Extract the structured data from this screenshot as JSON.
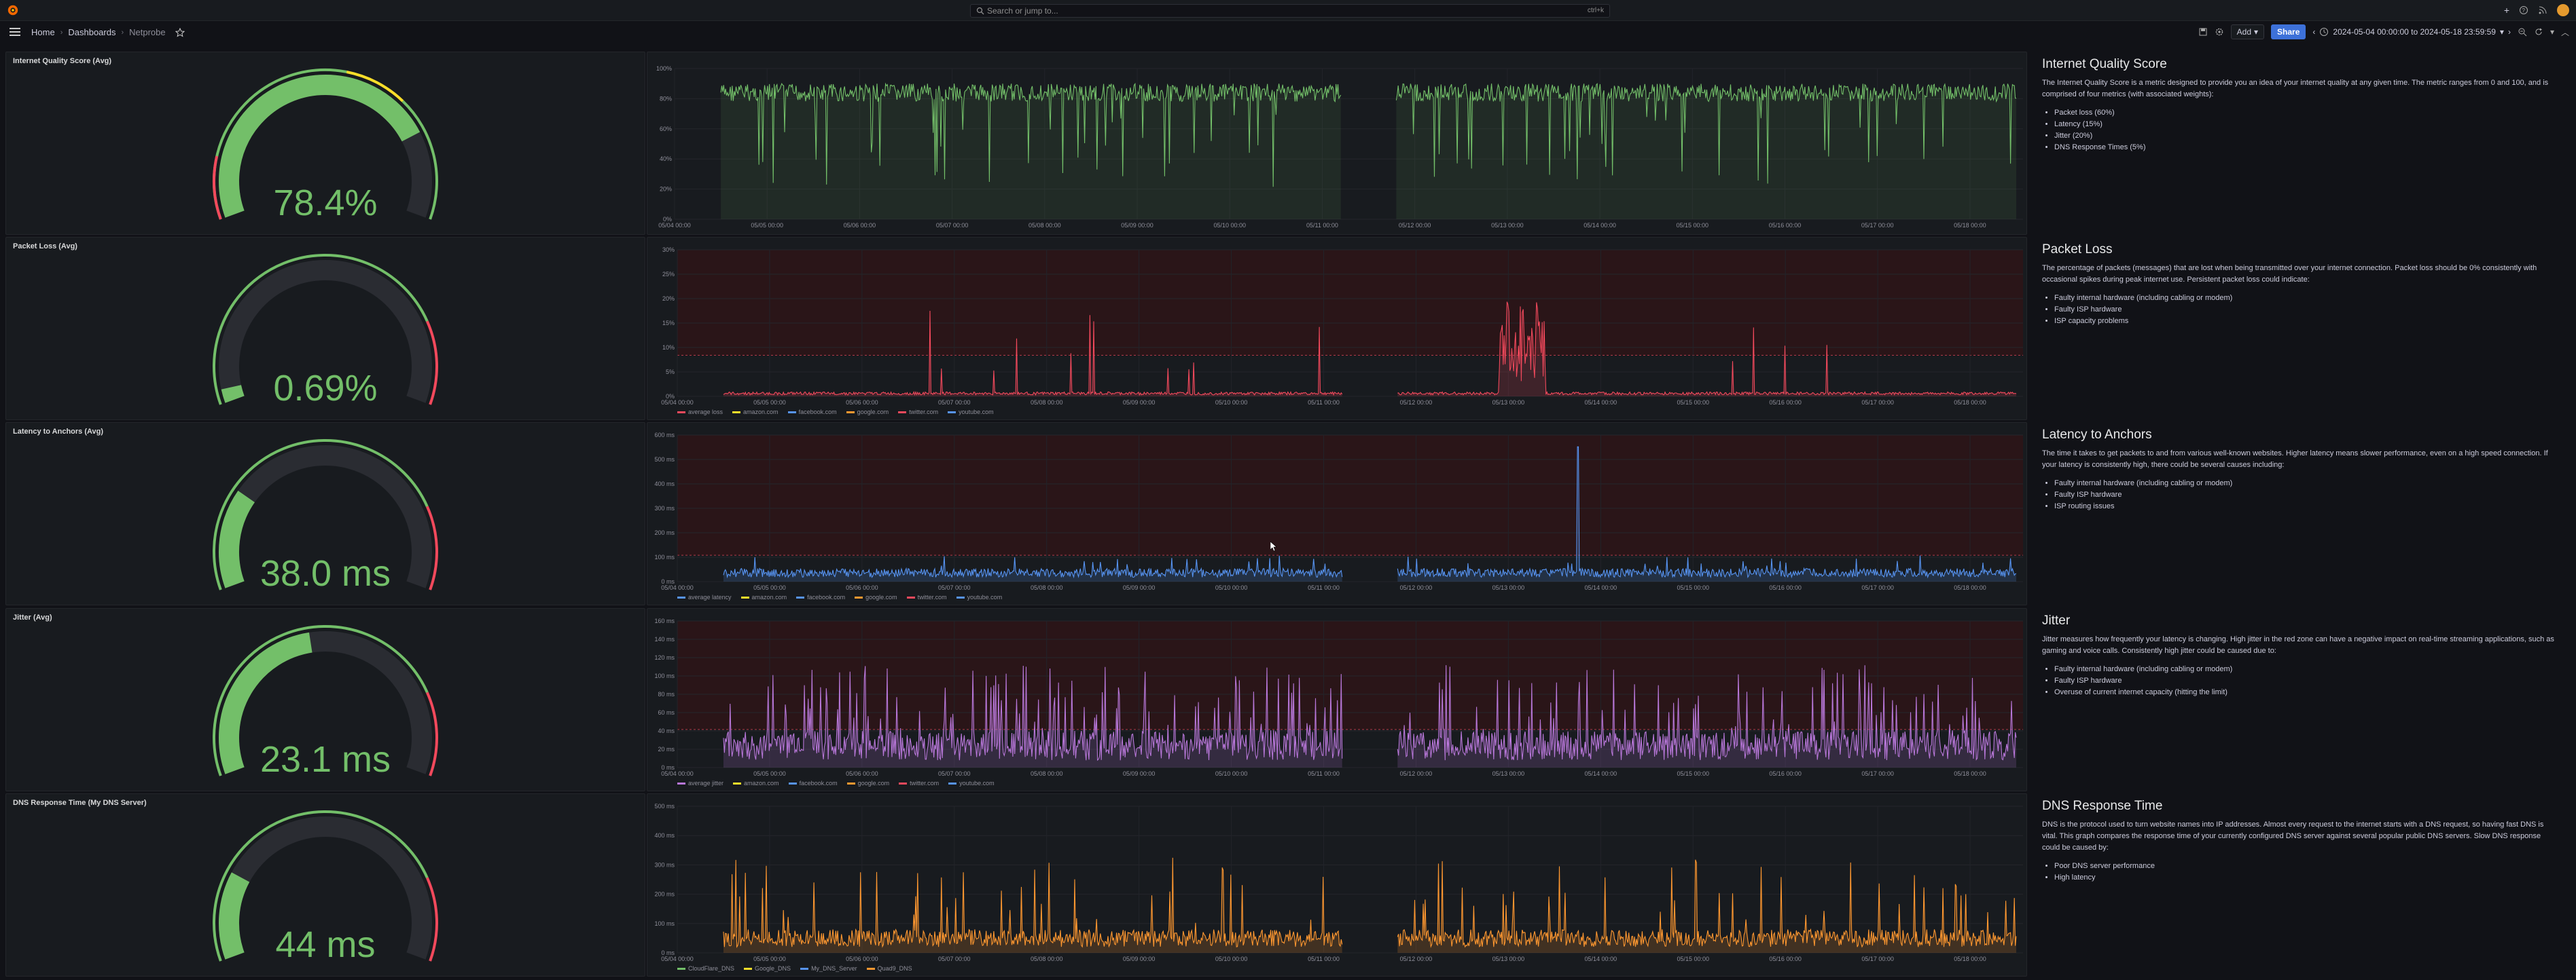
{
  "topbar": {
    "search_placeholder": "Search or jump to...",
    "search_shortcut": "ctrl+k",
    "plus_label": "+"
  },
  "breadcrumb": [
    "Home",
    "Dashboards",
    "Netprobe"
  ],
  "toolbar": {
    "add_label": "Add",
    "share_label": "Share",
    "time_range": "2024-05-04 00:00:00 to 2024-05-18 23:59:59"
  },
  "colors": {
    "green": "#73bf69",
    "red": "#f2495c",
    "blue": "#5794f2",
    "purple": "#b877d9",
    "orange": "#ff9830",
    "yellow": "#fade2a",
    "darkred": "#3b1c20"
  },
  "x_ticks": [
    "05/04 00:00",
    "05/05 00:00",
    "05/06 00:00",
    "05/07 00:00",
    "05/08 00:00",
    "05/09 00:00",
    "05/10 00:00",
    "05/11 00:00",
    "05/12 00:00",
    "05/13 00:00",
    "05/14 00:00",
    "05/15 00:00",
    "05/16 00:00",
    "05/17 00:00",
    "05/18 00:00"
  ],
  "rows": [
    {
      "gauge_title": "Internet Quality Score (Avg)",
      "gauge_value": "78.4%",
      "gauge_fraction": 0.784,
      "gauge_color": "#73bf69",
      "y_ticks": [
        "0%",
        "20%",
        "40%",
        "60%",
        "80%",
        "100%"
      ],
      "series_color": "#73bf69",
      "legend": [],
      "info_title": "Internet Quality Score",
      "info_text": "The Internet Quality Score is a metric designed to provide you an idea of your internet quality at any given time. The metric ranges from 0 and 100, and is comprised of four metrics (with associated weights):",
      "info_items": [
        "Packet loss (60%)",
        "Latency (15%)",
        "Jitter (20%)",
        "DNS Response Times (5%)"
      ]
    },
    {
      "gauge_title": "Packet Loss (Avg)",
      "gauge_value": "0.69%",
      "gauge_fraction": 0.0345,
      "gauge_color": "#73bf69",
      "y_ticks": [
        "0%",
        "5%",
        "10%",
        "15%",
        "20%",
        "25%",
        "30%"
      ],
      "series_color": "#f2495c",
      "legend": [
        {
          "name": "average loss",
          "color": "#f2495c"
        },
        {
          "name": "amazon.com",
          "color": "#fade2a"
        },
        {
          "name": "facebook.com",
          "color": "#5794f2"
        },
        {
          "name": "google.com",
          "color": "#ff9830"
        },
        {
          "name": "twitter.com",
          "color": "#f2495c"
        },
        {
          "name": "youtube.com",
          "color": "#5794f2"
        }
      ],
      "info_title": "Packet Loss",
      "info_text": "The percentage of packets (messages) that are lost when being transmitted over your internet connection. Packet loss should be 0% consistently with occasional spikes during peak internet use. Persistent packet loss could indicate:",
      "info_items": [
        "Faulty internal hardware (including cabling or modem)",
        "Faulty ISP hardware",
        "ISP capacity problems"
      ]
    },
    {
      "gauge_title": "Latency to Anchors (Avg)",
      "gauge_value": "38.0 ms",
      "gauge_fraction": 0.25,
      "gauge_color": "#73bf69",
      "y_ticks": [
        "0 ms",
        "100 ms",
        "200 ms",
        "300 ms",
        "400 ms",
        "500 ms",
        "600 ms"
      ],
      "series_color": "#5794f2",
      "legend": [
        {
          "name": "average latency",
          "color": "#5794f2"
        },
        {
          "name": "amazon.com",
          "color": "#fade2a"
        },
        {
          "name": "facebook.com",
          "color": "#5794f2"
        },
        {
          "name": "google.com",
          "color": "#ff9830"
        },
        {
          "name": "twitter.com",
          "color": "#f2495c"
        },
        {
          "name": "youtube.com",
          "color": "#5794f2"
        }
      ],
      "info_title": "Latency to Anchors",
      "info_text": "The time it takes to get packets to and from various well-known websites. Higher latency means slower performance, even on a high speed connection. If your latency is consistently high, there could be several causes including:",
      "info_items": [
        "Faulty internal hardware (including cabling or modem)",
        "Faulty ISP hardware",
        "ISP routing issues"
      ]
    },
    {
      "gauge_title": "Jitter (Avg)",
      "gauge_value": "23.1 ms",
      "gauge_fraction": 0.46,
      "gauge_color": "#73bf69",
      "y_ticks": [
        "0 ms",
        "20 ms",
        "40 ms",
        "60 ms",
        "80 ms",
        "100 ms",
        "120 ms",
        "140 ms",
        "160 ms"
      ],
      "series_color": "#b877d9",
      "legend": [
        {
          "name": "average jitter",
          "color": "#b877d9"
        },
        {
          "name": "amazon.com",
          "color": "#fade2a"
        },
        {
          "name": "facebook.com",
          "color": "#5794f2"
        },
        {
          "name": "google.com",
          "color": "#ff9830"
        },
        {
          "name": "twitter.com",
          "color": "#f2495c"
        },
        {
          "name": "youtube.com",
          "color": "#5794f2"
        }
      ],
      "info_title": "Jitter",
      "info_text": "Jitter measures how frequently your latency is changing. High jitter in the red zone can have a negative impact on real-time streaming applications, such as gaming and voice calls. Consistently high jitter could be caused due to:",
      "info_items": [
        "Faulty internal hardware (including cabling or modem)",
        "Faulty ISP hardware",
        "Overuse of current internet capacity (hitting the limit)"
      ]
    },
    {
      "gauge_title": "DNS Response Time (My DNS Server)",
      "gauge_value": "44 ms",
      "gauge_fraction": 0.22,
      "gauge_color": "#73bf69",
      "y_ticks": [
        "0 ms",
        "100 ms",
        "200 ms",
        "300 ms",
        "400 ms",
        "500 ms"
      ],
      "series_color": "#ff9830",
      "legend": [
        {
          "name": "CloudFlare_DNS",
          "color": "#73bf69"
        },
        {
          "name": "Google_DNS",
          "color": "#fade2a"
        },
        {
          "name": "My_DNS_Server",
          "color": "#5794f2"
        },
        {
          "name": "Quad9_DNS",
          "color": "#ff9830"
        }
      ],
      "info_title": "DNS Response Time",
      "info_text": "DNS is the protocol used to turn website names into IP addresses. Almost every request to the internet starts with a DNS request, so having fast DNS is vital. This graph compares the response time of your currently configured DNS server against several popular public DNS servers. Slow DNS response could be caused by:",
      "info_items": [
        "Poor DNS server performance",
        "High latency"
      ]
    }
  ]
}
